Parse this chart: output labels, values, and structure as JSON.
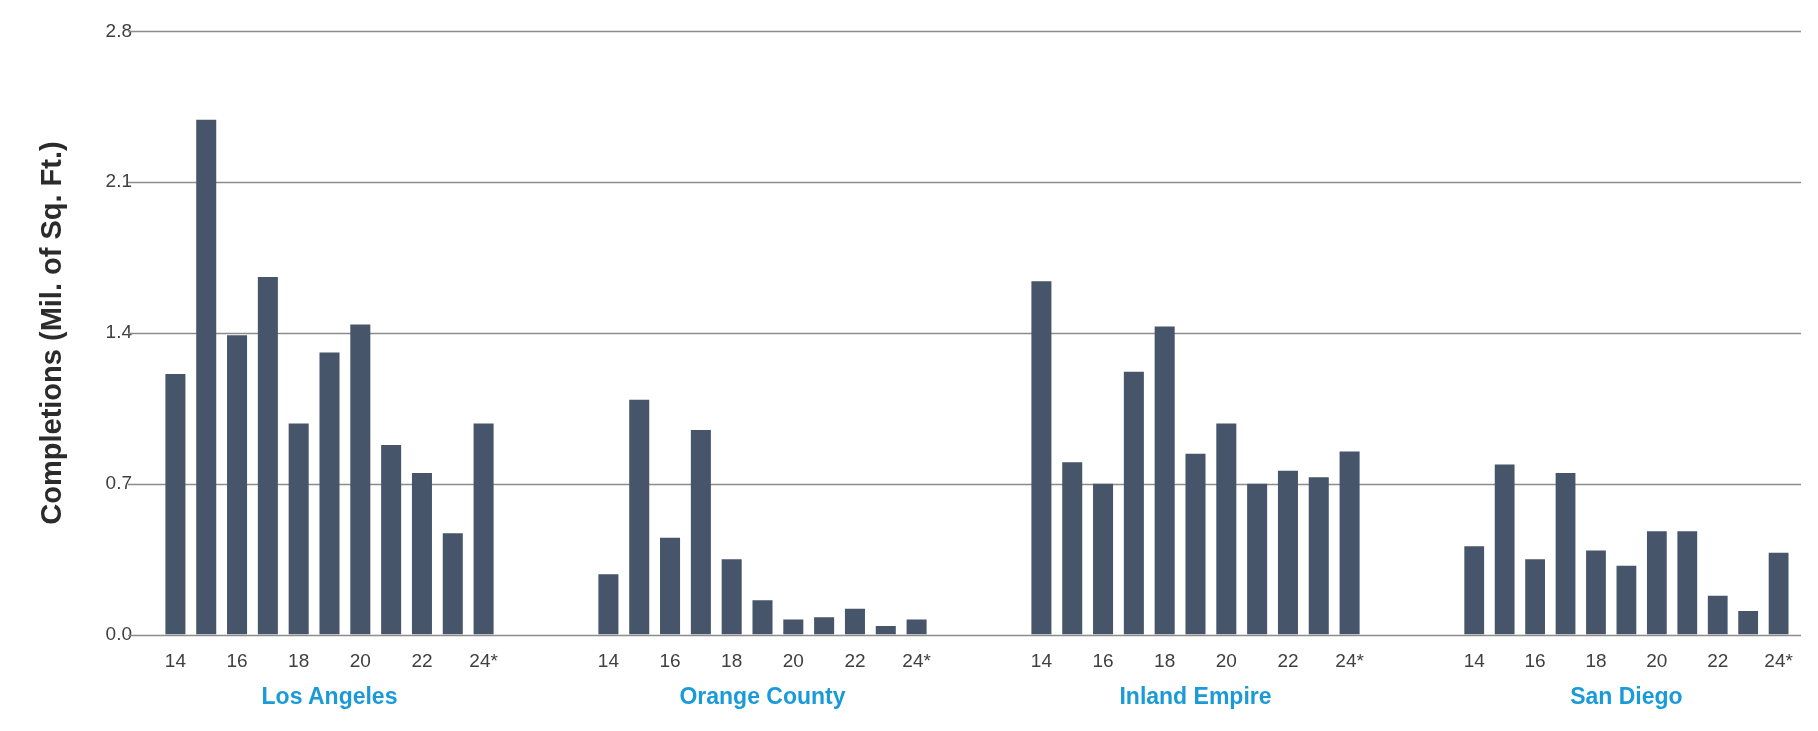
{
  "chart_data": [
    {
      "type": "bar",
      "ylabel": "Completions (Mil. of Sq. Ft.)",
      "xlabel": "Los Angeles",
      "categories": [
        "14",
        null,
        "16",
        null,
        "18",
        null,
        "20",
        null,
        "22",
        null,
        "24*"
      ],
      "values": [
        1.21,
        2.39,
        1.39,
        1.66,
        0.98,
        1.31,
        1.44,
        0.88,
        0.75,
        0.47,
        0.98
      ],
      "color": "#465569",
      "ylim": [
        0,
        2.8
      ],
      "yticks": [
        {
          "value": 0,
          "label": "0.0"
        },
        0.7,
        1.4,
        2.1,
        2.8
      ],
      "grid": "y"
    },
    {
      "type": "bar",
      "xlabel": "Orange County",
      "categories": [
        "14",
        null,
        "16",
        null,
        "18",
        null,
        "20",
        null,
        "22",
        null,
        "24*"
      ],
      "values": [
        0.28,
        1.09,
        0.45,
        0.95,
        0.35,
        0.16,
        0.07,
        0.08,
        0.12,
        0.04,
        0.07
      ],
      "color": "#465569",
      "ylim": [
        0,
        2.8
      ],
      "yticks": [
        0,
        0.7,
        1.4,
        2.1,
        2.8
      ],
      "grid": "y",
      "tick_labels": "x"
    },
    {
      "type": "bar",
      "xlabel": "Inland Empire",
      "categories": [
        "14",
        null,
        "16",
        null,
        "18",
        null,
        "20",
        null,
        "22",
        null,
        "24*"
      ],
      "values": [
        1.64,
        0.8,
        0.7,
        1.22,
        1.43,
        0.84,
        0.98,
        0.7,
        0.76,
        0.73,
        0.85
      ],
      "color": "#465569",
      "ylim": [
        0,
        2.8
      ],
      "yticks": [
        0,
        0.7,
        1.4,
        2.1,
        2.8
      ],
      "grid": "y",
      "tick_labels": "x"
    },
    {
      "type": "bar",
      "xlabel": "San Diego",
      "categories": [
        "14",
        null,
        "16",
        null,
        "18",
        null,
        "20",
        null,
        "22",
        null,
        "24*"
      ],
      "values": [
        0.41,
        0.79,
        0.35,
        0.75,
        0.39,
        0.32,
        0.48,
        0.48,
        0.18,
        0.11,
        0.38
      ],
      "color": "#465569",
      "ylim": [
        0,
        2.8
      ],
      "yticks": [
        0,
        0.7,
        1.4,
        2.1,
        2.8
      ],
      "grid": "y",
      "tick_labels": "x"
    }
  ]
}
